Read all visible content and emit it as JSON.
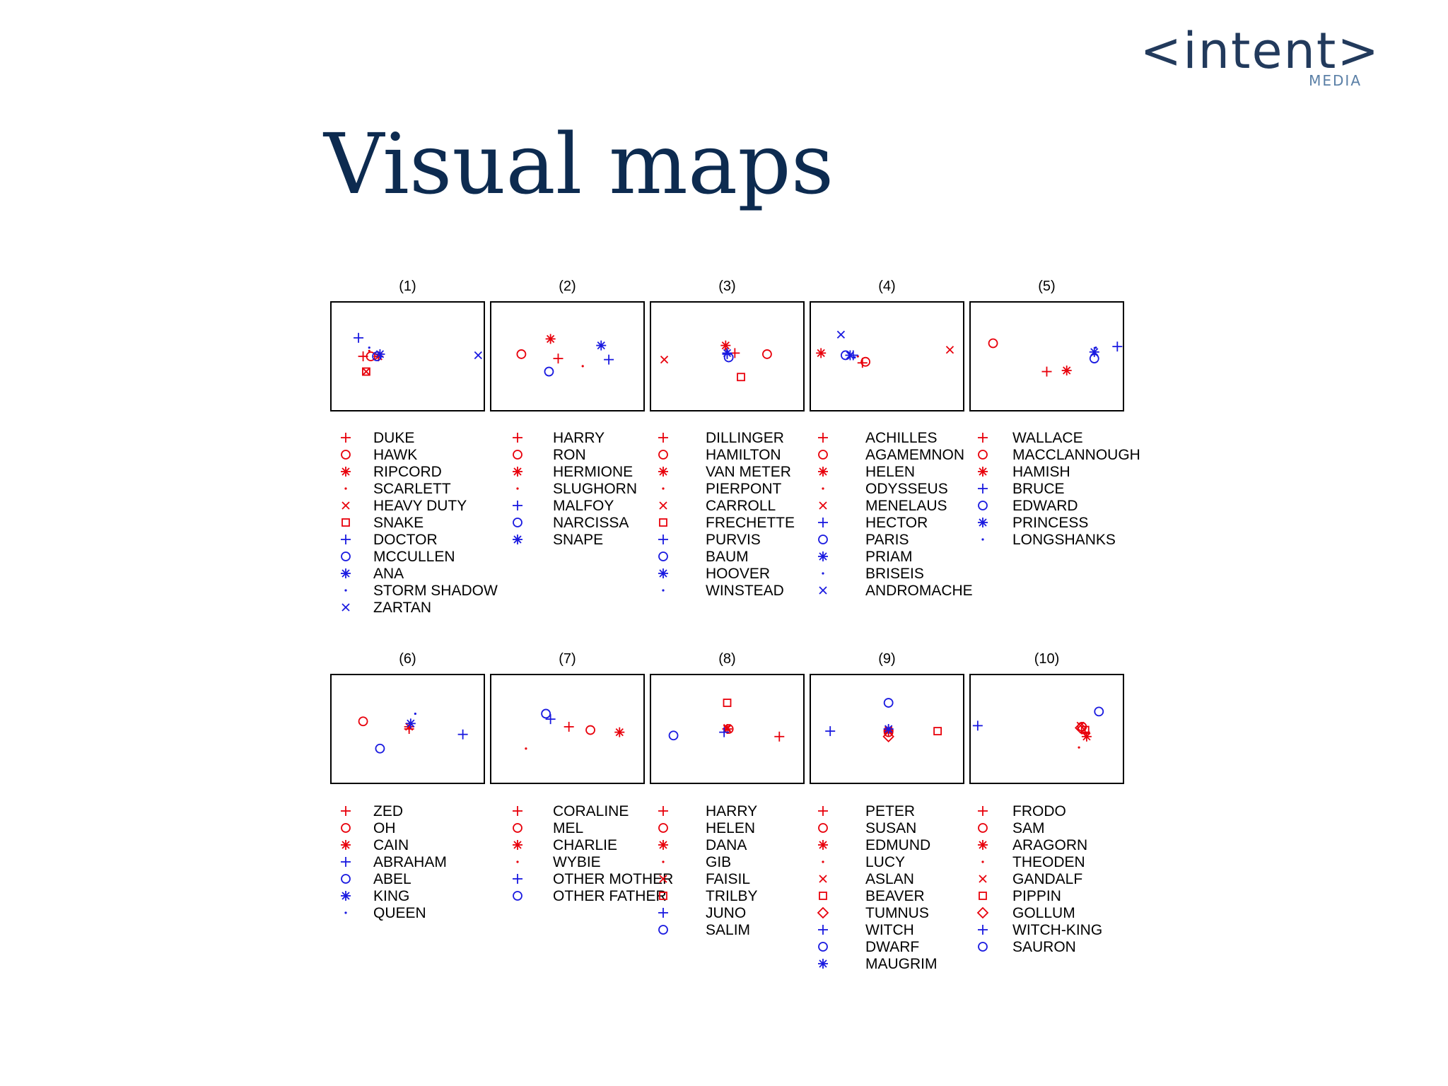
{
  "logo": {
    "text": "<intent>",
    "subtext": "MEDIA"
  },
  "title": "Visual maps",
  "colors": {
    "red": "#e8000b",
    "blue": "#1a1ae0",
    "title": "#0d2b50",
    "logo": "#223a5c"
  },
  "chart_data": [
    {
      "type": "scatter",
      "title": "(1)",
      "xlim": [
        0,
        1
      ],
      "ylim": [
        0,
        1
      ],
      "legend": [
        {
          "label": "DUKE",
          "marker": "plus",
          "color": "red",
          "x": 0.21,
          "y": 0.5
        },
        {
          "label": "HAWK",
          "marker": "circle",
          "color": "red",
          "x": 0.26,
          "y": 0.5
        },
        {
          "label": "RIPCORD",
          "marker": "star",
          "color": "red",
          "x": 0.31,
          "y": 0.5
        },
        {
          "label": "SCARLETT",
          "marker": "dot",
          "color": "red",
          "x": 0.25,
          "y": 0.55
        },
        {
          "label": "HEAVY DUTY",
          "marker": "x",
          "color": "red",
          "x": 0.23,
          "y": 0.36
        },
        {
          "label": "SNAKE",
          "marker": "square",
          "color": "red",
          "x": 0.23,
          "y": 0.36
        },
        {
          "label": "DOCTOR",
          "marker": "plus",
          "color": "blue",
          "x": 0.18,
          "y": 0.67
        },
        {
          "label": "MCCULLEN",
          "marker": "circle",
          "color": "blue",
          "x": 0.3,
          "y": 0.5
        },
        {
          "label": "ANA",
          "marker": "star",
          "color": "blue",
          "x": 0.32,
          "y": 0.52
        },
        {
          "label": "STORM SHADOW",
          "marker": "dot",
          "color": "blue",
          "x": 0.25,
          "y": 0.58
        },
        {
          "label": "ZARTAN",
          "marker": "x",
          "color": "blue",
          "x": 0.96,
          "y": 0.51
        }
      ]
    },
    {
      "type": "scatter",
      "title": "(2)",
      "xlim": [
        0,
        1
      ],
      "ylim": [
        0,
        1
      ],
      "legend": [
        {
          "label": "HARRY",
          "marker": "plus",
          "color": "red",
          "x": 0.44,
          "y": 0.48
        },
        {
          "label": "RON",
          "marker": "circle",
          "color": "red",
          "x": 0.2,
          "y": 0.52
        },
        {
          "label": "HERMIONE",
          "marker": "star",
          "color": "red",
          "x": 0.39,
          "y": 0.66
        },
        {
          "label": "SLUGHORN",
          "marker": "dot",
          "color": "red",
          "x": 0.6,
          "y": 0.41
        },
        {
          "label": "MALFOY",
          "marker": "plus",
          "color": "blue",
          "x": 0.77,
          "y": 0.47
        },
        {
          "label": "NARCISSA",
          "marker": "circle",
          "color": "blue",
          "x": 0.38,
          "y": 0.36
        },
        {
          "label": "SNAPE",
          "marker": "star",
          "color": "blue",
          "x": 0.72,
          "y": 0.6
        }
      ]
    },
    {
      "type": "scatter",
      "title": "(3)",
      "xlim": [
        0,
        1
      ],
      "ylim": [
        0,
        1
      ],
      "legend": [
        {
          "label": "DILLINGER",
          "marker": "plus",
          "color": "red",
          "x": 0.55,
          "y": 0.53
        },
        {
          "label": "HAMILTON",
          "marker": "circle",
          "color": "red",
          "x": 0.76,
          "y": 0.52
        },
        {
          "label": "VAN METER",
          "marker": "star",
          "color": "red",
          "x": 0.49,
          "y": 0.6
        },
        {
          "label": "PIERPONT",
          "marker": "dot",
          "color": "red",
          "x": 0.49,
          "y": 0.57
        },
        {
          "label": "CARROLL",
          "marker": "x",
          "color": "red",
          "x": 0.09,
          "y": 0.47
        },
        {
          "label": "FRECHETTE",
          "marker": "square",
          "color": "red",
          "x": 0.59,
          "y": 0.31
        },
        {
          "label": "PURVIS",
          "marker": "plus",
          "color": "blue",
          "x": 0.5,
          "y": 0.52
        },
        {
          "label": "BAUM",
          "marker": "circle",
          "color": "blue",
          "x": 0.51,
          "y": 0.49
        },
        {
          "label": "HOOVER",
          "marker": "star",
          "color": "blue",
          "x": 0.5,
          "y": 0.53
        },
        {
          "label": "WINSTEAD",
          "marker": "dot",
          "color": "blue",
          "x": 0.5,
          "y": 0.55
        }
      ]
    },
    {
      "type": "scatter",
      "title": "(4)",
      "xlim": [
        0,
        1
      ],
      "ylim": [
        0,
        1
      ],
      "legend": [
        {
          "label": "ACHILLES",
          "marker": "plus",
          "color": "red",
          "x": 0.34,
          "y": 0.44
        },
        {
          "label": "AGAMEMNON",
          "marker": "circle",
          "color": "red",
          "x": 0.36,
          "y": 0.45
        },
        {
          "label": "HELEN",
          "marker": "star",
          "color": "red",
          "x": 0.07,
          "y": 0.53
        },
        {
          "label": "ODYSSEUS",
          "marker": "dot",
          "color": "red",
          "x": 0.31,
          "y": 0.5
        },
        {
          "label": "MENELAUS",
          "marker": "x",
          "color": "red",
          "x": 0.91,
          "y": 0.56
        },
        {
          "label": "HECTOR",
          "marker": "plus",
          "color": "blue",
          "x": 0.28,
          "y": 0.51
        },
        {
          "label": "PARIS",
          "marker": "circle",
          "color": "blue",
          "x": 0.23,
          "y": 0.51
        },
        {
          "label": "PRIAM",
          "marker": "star",
          "color": "blue",
          "x": 0.26,
          "y": 0.51
        },
        {
          "label": "BRISEIS",
          "marker": "dot",
          "color": "blue",
          "x": 0.29,
          "y": 0.49
        },
        {
          "label": "ANDROMACHE",
          "marker": "x",
          "color": "blue",
          "x": 0.2,
          "y": 0.7
        }
      ]
    },
    {
      "type": "scatter",
      "title": "(5)",
      "xlim": [
        0,
        1
      ],
      "ylim": [
        0,
        1
      ],
      "legend": [
        {
          "label": "WALLACE",
          "marker": "plus",
          "color": "red",
          "x": 0.5,
          "y": 0.36
        },
        {
          "label": "MACCLANNOUGH",
          "marker": "circle",
          "color": "red",
          "x": 0.15,
          "y": 0.62
        },
        {
          "label": "HAMISH",
          "marker": "star",
          "color": "red",
          "x": 0.63,
          "y": 0.37
        },
        {
          "label": "BRUCE",
          "marker": "plus",
          "color": "blue",
          "x": 0.96,
          "y": 0.59
        },
        {
          "label": "EDWARD",
          "marker": "circle",
          "color": "blue",
          "x": 0.81,
          "y": 0.48
        },
        {
          "label": "PRINCESS",
          "marker": "star",
          "color": "blue",
          "x": 0.81,
          "y": 0.54
        },
        {
          "label": "LONGSHANKS",
          "marker": "dot",
          "color": "blue",
          "x": 0.82,
          "y": 0.58
        }
      ]
    },
    {
      "type": "scatter",
      "title": "(6)",
      "xlim": [
        0,
        1
      ],
      "ylim": [
        0,
        1
      ],
      "legend": [
        {
          "label": "ZED",
          "marker": "plus",
          "color": "red",
          "x": 0.51,
          "y": 0.5
        },
        {
          "label": "OH",
          "marker": "circle",
          "color": "red",
          "x": 0.21,
          "y": 0.57
        },
        {
          "label": "CAIN",
          "marker": "star",
          "color": "red",
          "x": 0.51,
          "y": 0.52
        },
        {
          "label": "ABRAHAM",
          "marker": "plus",
          "color": "blue",
          "x": 0.86,
          "y": 0.45
        },
        {
          "label": "ABEL",
          "marker": "circle",
          "color": "blue",
          "x": 0.32,
          "y": 0.32
        },
        {
          "label": "KING",
          "marker": "star",
          "color": "blue",
          "x": 0.52,
          "y": 0.55
        },
        {
          "label": "QUEEN",
          "marker": "dot",
          "color": "blue",
          "x": 0.55,
          "y": 0.64
        }
      ]
    },
    {
      "type": "scatter",
      "title": "(7)",
      "xlim": [
        0,
        1
      ],
      "ylim": [
        0,
        1
      ],
      "legend": [
        {
          "label": "CORALINE",
          "marker": "plus",
          "color": "red",
          "x": 0.51,
          "y": 0.52
        },
        {
          "label": "MEL",
          "marker": "circle",
          "color": "red",
          "x": 0.65,
          "y": 0.49
        },
        {
          "label": "CHARLIE",
          "marker": "star",
          "color": "red",
          "x": 0.84,
          "y": 0.47
        },
        {
          "label": "WYBIE",
          "marker": "dot",
          "color": "red",
          "x": 0.23,
          "y": 0.32
        },
        {
          "label": "OTHER MOTHER",
          "marker": "plus",
          "color": "blue",
          "x": 0.39,
          "y": 0.59
        },
        {
          "label": "OTHER FATHER",
          "marker": "circle",
          "color": "blue",
          "x": 0.36,
          "y": 0.64
        }
      ]
    },
    {
      "type": "scatter",
      "title": "(8)",
      "xlim": [
        0,
        1
      ],
      "ylim": [
        0,
        1
      ],
      "legend": [
        {
          "label": "HARRY",
          "marker": "plus",
          "color": "red",
          "x": 0.84,
          "y": 0.43
        },
        {
          "label": "HELEN",
          "marker": "circle",
          "color": "red",
          "x": 0.51,
          "y": 0.5
        },
        {
          "label": "DANA",
          "marker": "star",
          "color": "red",
          "x": 0.5,
          "y": 0.5
        },
        {
          "label": "GIB",
          "marker": "dot",
          "color": "red",
          "x": 0.5,
          "y": 0.51
        },
        {
          "label": "FAISIL",
          "marker": "x",
          "color": "red",
          "x": 0.5,
          "y": 0.51
        },
        {
          "label": "TRILBY",
          "marker": "square",
          "color": "red",
          "x": 0.5,
          "y": 0.74
        },
        {
          "label": "JUNO",
          "marker": "plus",
          "color": "blue",
          "x": 0.48,
          "y": 0.47
        },
        {
          "label": "SALIM",
          "marker": "circle",
          "color": "blue",
          "x": 0.15,
          "y": 0.44
        }
      ]
    },
    {
      "type": "scatter",
      "title": "(9)",
      "xlim": [
        0,
        1
      ],
      "ylim": [
        0,
        1
      ],
      "legend": [
        {
          "label": "PETER",
          "marker": "plus",
          "color": "red",
          "x": 0.51,
          "y": 0.49
        },
        {
          "label": "SUSAN",
          "marker": "circle",
          "color": "red",
          "x": 0.51,
          "y": 0.47
        },
        {
          "label": "EDMUND",
          "marker": "star",
          "color": "red",
          "x": 0.51,
          "y": 0.48
        },
        {
          "label": "LUCY",
          "marker": "dot",
          "color": "red",
          "x": 0.51,
          "y": 0.49
        },
        {
          "label": "ASLAN",
          "marker": "x",
          "color": "red",
          "x": 0.51,
          "y": 0.49
        },
        {
          "label": "BEAVER",
          "marker": "square",
          "color": "red",
          "x": 0.83,
          "y": 0.48
        },
        {
          "label": "TUMNUS",
          "marker": "diamond",
          "color": "red",
          "x": 0.51,
          "y": 0.43
        },
        {
          "label": "WITCH",
          "marker": "plus",
          "color": "blue",
          "x": 0.13,
          "y": 0.48
        },
        {
          "label": "DWARF",
          "marker": "circle",
          "color": "blue",
          "x": 0.51,
          "y": 0.74
        },
        {
          "label": "MAUGRIM",
          "marker": "star",
          "color": "blue",
          "x": 0.51,
          "y": 0.5
        }
      ]
    },
    {
      "type": "scatter",
      "title": "(10)",
      "xlim": [
        0,
        1
      ],
      "ylim": [
        0,
        1
      ],
      "legend": [
        {
          "label": "FRODO",
          "marker": "plus",
          "color": "red",
          "x": 0.75,
          "y": 0.47
        },
        {
          "label": "SAM",
          "marker": "circle",
          "color": "red",
          "x": 0.73,
          "y": 0.52
        },
        {
          "label": "ARAGORN",
          "marker": "star",
          "color": "red",
          "x": 0.76,
          "y": 0.43
        },
        {
          "label": "THEODEN",
          "marker": "dot",
          "color": "red",
          "x": 0.71,
          "y": 0.33
        },
        {
          "label": "GANDALF",
          "marker": "x",
          "color": "red",
          "x": 0.72,
          "y": 0.53
        },
        {
          "label": "PIPPIN",
          "marker": "square",
          "color": "red",
          "x": 0.75,
          "y": 0.49
        },
        {
          "label": "GOLLUM",
          "marker": "diamond",
          "color": "red",
          "x": 0.72,
          "y": 0.51
        },
        {
          "label": "WITCH-KING",
          "marker": "plus",
          "color": "blue",
          "x": 0.05,
          "y": 0.53
        },
        {
          "label": "SAURON",
          "marker": "circle",
          "color": "blue",
          "x": 0.84,
          "y": 0.66
        }
      ]
    }
  ]
}
